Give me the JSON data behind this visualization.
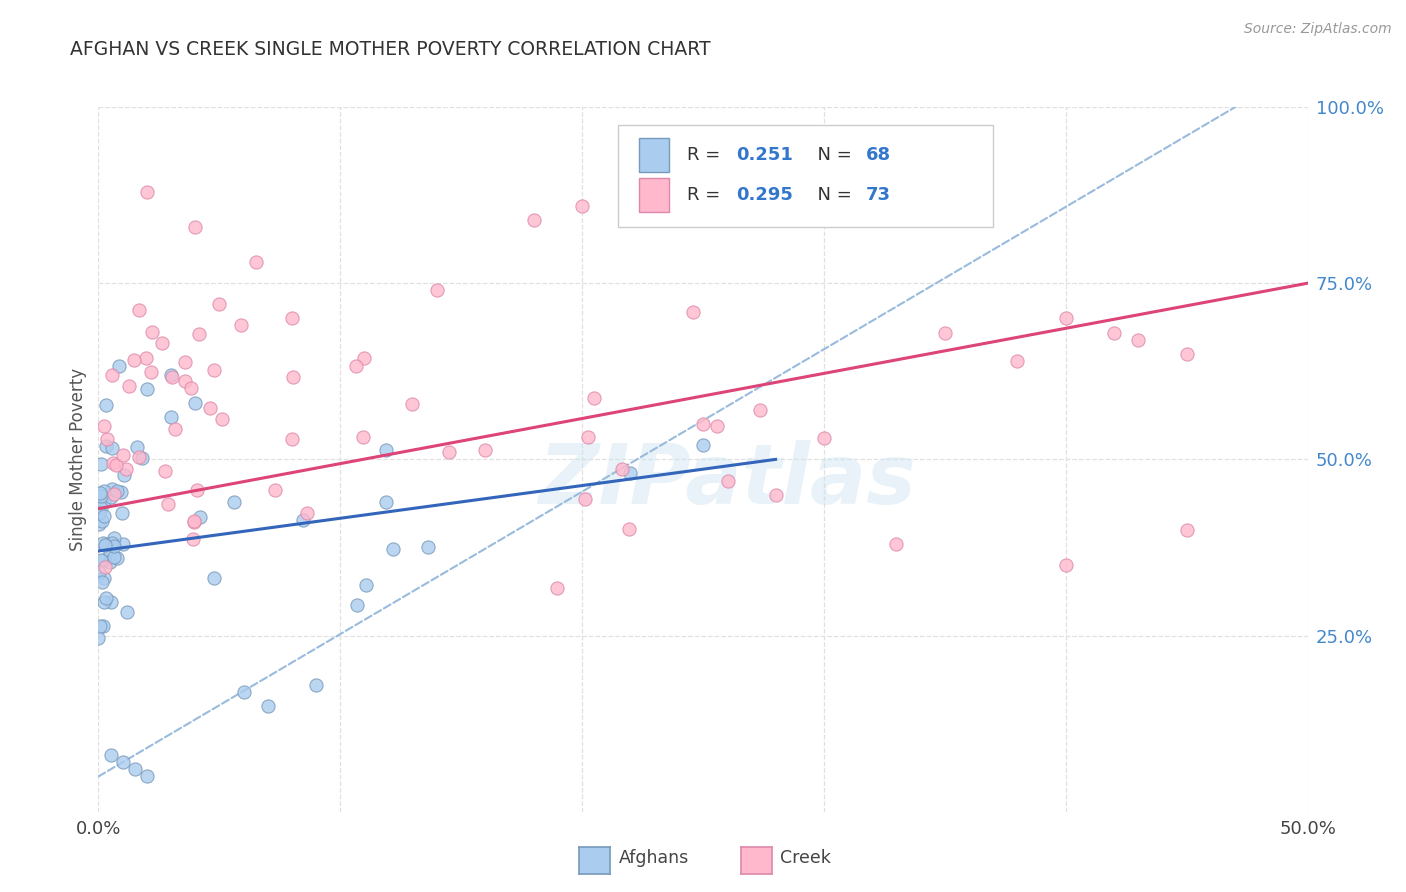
{
  "title": "AFGHAN VS CREEK SINGLE MOTHER POVERTY CORRELATION CHART",
  "source": "Source: ZipAtlas.com",
  "ylabel": "Single Mother Poverty",
  "xlim": [
    0.0,
    0.5
  ],
  "ylim": [
    0.0,
    1.0
  ],
  "x_ticks": [
    0.0,
    0.1,
    0.2,
    0.3,
    0.4,
    0.5
  ],
  "y_ticks_right": [
    0.25,
    0.5,
    0.75,
    1.0
  ],
  "y_tick_labels_right": [
    "25.0%",
    "50.0%",
    "75.0%",
    "100.0%"
  ],
  "afghan_color": "#aaccee",
  "afghan_edge": "#7799bb",
  "creek_color": "#ffb8cc",
  "creek_edge": "#dd88aa",
  "afghan_R": 0.251,
  "afghan_N": 68,
  "creek_R": 0.295,
  "creek_N": 73,
  "legend_label_afghan": "Afghans",
  "legend_label_creek": "Creek",
  "watermark": "ZIPatlas",
  "background_color": "#ffffff",
  "grid_color": "#e0e0e0",
  "title_color": "#333333",
  "axis_label_color": "#555555",
  "right_tick_color": "#4488cc",
  "creek_line_color": "#dd4477",
  "afghan_line_color": "#3366bb",
  "dash_line_color": "#99bbdd",
  "creek_line_x0": 0.0,
  "creek_line_y0": 0.43,
  "creek_line_x1": 0.5,
  "creek_line_y1": 0.75,
  "afghan_line_x0": 0.0,
  "afghan_line_y0": 0.37,
  "afghan_line_x1": 0.28,
  "afghan_line_y1": 0.5
}
